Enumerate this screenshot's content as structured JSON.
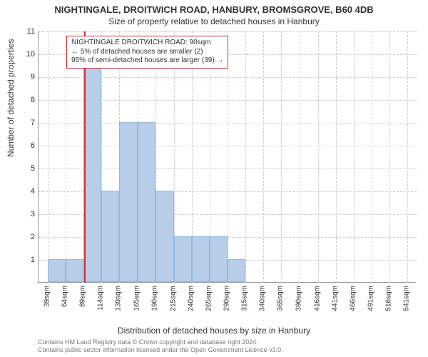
{
  "title": "NIGHTINGALE, DROITWICH ROAD, HANBURY, BROMSGROVE, B60 4DB",
  "subtitle": "Size of property relative to detached houses in Hanbury",
  "ylabel": "Number of detached properties",
  "xlabel": "Distribution of detached houses by size in Hanbury",
  "chart": {
    "type": "bar",
    "ymax": 11,
    "yticks": [
      1,
      2,
      3,
      4,
      5,
      6,
      7,
      8,
      9,
      10,
      11
    ],
    "xticks_full": [
      39,
      64,
      89,
      114,
      139,
      165,
      190,
      215,
      240,
      265,
      290,
      315,
      340,
      365,
      390,
      416,
      441,
      466,
      491,
      516,
      541
    ],
    "x_unit": "sqm",
    "x_min_edge": 26.5,
    "x_max_edge": 553.5,
    "bar_step": 25,
    "bars": [
      {
        "from": 39,
        "to": 64,
        "h": 1
      },
      {
        "from": 64,
        "to": 89,
        "h": 1
      },
      {
        "from": 89,
        "to": 114,
        "h": 10
      },
      {
        "from": 114,
        "to": 139,
        "h": 4
      },
      {
        "from": 139,
        "to": 165,
        "h": 7
      },
      {
        "from": 165,
        "to": 190,
        "h": 7
      },
      {
        "from": 190,
        "to": 215,
        "h": 4
      },
      {
        "from": 215,
        "to": 240,
        "h": 2
      },
      {
        "from": 240,
        "to": 265,
        "h": 2
      },
      {
        "from": 265,
        "to": 290,
        "h": 2
      },
      {
        "from": 290,
        "to": 315,
        "h": 1
      }
    ],
    "marker_x": 90,
    "colors": {
      "bar_fill": "#b8cde8",
      "bar_border": "#93b6dd",
      "marker": "#cc3333",
      "grid": "#cccccc",
      "axis": "#999999",
      "text": "#333333",
      "bg": "#ffffff"
    }
  },
  "annotation": {
    "line1": "NIGHTINGALE DROITWICH ROAD: 90sqm",
    "line2": "← 5% of detached houses are smaller (2)",
    "line3": "95% of semi-detached houses are larger (39) →"
  },
  "footer": {
    "line1": "Contains HM Land Registry data © Crown copyright and database right 2024.",
    "line2": "Contains public sector information licensed under the Open Government Licence v3.0."
  }
}
